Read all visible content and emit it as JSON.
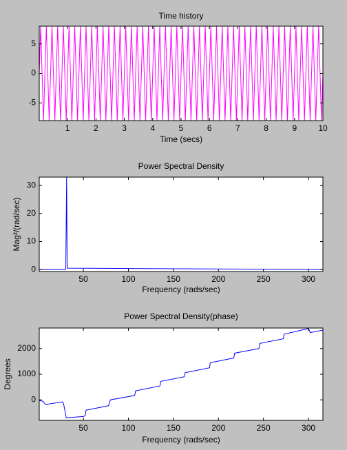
{
  "chart_data": [
    {
      "type": "line",
      "title": "Time history",
      "xlabel": "Time (secs)",
      "color": "#ff00ff",
      "xlim": [
        0,
        10
      ],
      "xticks": [
        1,
        2,
        3,
        4,
        5,
        6,
        7,
        8,
        9,
        10
      ],
      "ylim": [
        -8,
        8
      ],
      "yticks": [
        -5,
        0,
        5
      ],
      "x": [
        0,
        0.05,
        0.1,
        0.15,
        0.2,
        0.25,
        0.3,
        0.35,
        0.4,
        0.45,
        0.5,
        0.55,
        0.6,
        0.65,
        0.7,
        0.75,
        0.8,
        0.85,
        0.9,
        0.95,
        1,
        1.05,
        1.1,
        1.15,
        1.2,
        1.25,
        1.3,
        1.35,
        1.4,
        1.45,
        1.5,
        1.55,
        1.6,
        1.65,
        1.7,
        1.75,
        1.8,
        1.85,
        1.9,
        1.95,
        2,
        2.05,
        2.1,
        2.15,
        2.2,
        2.25,
        2.3,
        2.35,
        2.4,
        2.45,
        2.5,
        2.55,
        2.6,
        2.65,
        2.7,
        2.75,
        2.8,
        2.85,
        2.9,
        2.95,
        3,
        3.05,
        3.1,
        3.15,
        3.2,
        3.25,
        3.3,
        3.35,
        3.4,
        3.45,
        3.5,
        3.55,
        3.6,
        3.65,
        3.7,
        3.75,
        3.8,
        3.85,
        3.9,
        3.95,
        4,
        4.05,
        4.1,
        4.15,
        4.2,
        4.25,
        4.3,
        4.35,
        4.4,
        4.45,
        4.5,
        4.55,
        4.6,
        4.65,
        4.7,
        4.75,
        4.8,
        4.85,
        4.9,
        4.95,
        5,
        5.05,
        5.1,
        5.15,
        5.2,
        5.25,
        5.3,
        5.35,
        5.4,
        5.45,
        5.5,
        5.55,
        5.6,
        5.65,
        5.7,
        5.75,
        5.8,
        5.85,
        5.9,
        5.95,
        6,
        6.05,
        6.1,
        6.15,
        6.2,
        6.25,
        6.3,
        6.35,
        6.4,
        6.45,
        6.5,
        6.55,
        6.6,
        6.65,
        6.7,
        6.75,
        6.8,
        6.85,
        6.9,
        6.95,
        7,
        7.05,
        7.1,
        7.15,
        7.2,
        7.25,
        7.3,
        7.35,
        7.4,
        7.45,
        7.5,
        7.55,
        7.6,
        7.65,
        7.7,
        7.75,
        7.8,
        7.85,
        7.9,
        7.95,
        8,
        8.05,
        8.1,
        8.15,
        8.2,
        8.25,
        8.3,
        8.35,
        8.4,
        8.45,
        8.5,
        8.55,
        8.6,
        8.65,
        8.7,
        8.75,
        8.8,
        8.85,
        8.9,
        8.95,
        9,
        9.05,
        9.1,
        9.15,
        9.2,
        9.25,
        9.3,
        9.35,
        9.4,
        9.45,
        9.5,
        9.55,
        9.6,
        9.65,
        9.7,
        9.75,
        9.8,
        9.85,
        9.9,
        9.95,
        10
      ],
      "values": [
        0,
        8,
        0,
        -8,
        0,
        8,
        0,
        -8,
        0,
        8,
        0,
        -8,
        0,
        8,
        0,
        -8,
        0,
        8,
        0,
        -8,
        0,
        8,
        0,
        -8,
        0,
        8,
        0,
        -8,
        0,
        8,
        0,
        -8,
        0,
        8,
        0,
        -8,
        0,
        8,
        0,
        -8,
        0,
        8,
        0,
        -8,
        0,
        8,
        0,
        -8,
        0,
        8,
        0,
        -8,
        0,
        8,
        0,
        -8,
        0,
        8,
        0,
        -8,
        0,
        8,
        0,
        -8,
        0,
        8,
        0,
        -8,
        0,
        8,
        0,
        -8,
        0,
        8,
        0,
        -8,
        0,
        8,
        0,
        -8,
        0,
        8,
        0,
        -8,
        0,
        8,
        0,
        -8,
        0,
        8,
        0,
        -8,
        0,
        8,
        0,
        -8,
        0,
        8,
        0,
        -8,
        0,
        8,
        0,
        -8,
        0,
        8,
        0,
        -8,
        0,
        8,
        0,
        -8,
        0,
        8,
        0,
        -8,
        0,
        8,
        0,
        -8,
        0,
        8,
        0,
        -8,
        0,
        8,
        0,
        -8,
        0,
        8,
        0,
        -8,
        0,
        8,
        0,
        -8,
        0,
        8,
        0,
        -8,
        0,
        8,
        0,
        -8,
        0,
        8,
        0,
        -8,
        0,
        8,
        0,
        -8,
        0,
        8,
        0,
        -8,
        0,
        8,
        0,
        -8,
        0,
        8,
        0,
        -8,
        0,
        8,
        0,
        -8,
        0,
        8,
        0,
        -8,
        0,
        8,
        0,
        -8,
        0,
        8,
        0,
        -8,
        0,
        8,
        0,
        -8,
        0,
        8,
        0,
        -8,
        0,
        8,
        0,
        -8,
        0,
        8,
        0,
        -8,
        0,
        8,
        0,
        -8,
        0
      ]
    },
    {
      "type": "line",
      "title": "Power Spectral Density",
      "xlabel": "Frequency (rads/sec)",
      "ylabel": "Mag²/(rad/sec)",
      "color": "#0000ff",
      "xlim": [
        1,
        316
      ],
      "xticks": [
        50,
        100,
        150,
        200,
        250,
        300
      ],
      "ylim": [
        -0.7,
        33
      ],
      "yticks": [
        0,
        10,
        20,
        30
      ],
      "x": [
        1,
        30,
        30.5,
        31,
        31.4,
        32,
        316
      ],
      "values": [
        0,
        0,
        1,
        19,
        33,
        0.5,
        0
      ]
    },
    {
      "type": "line",
      "title": "Power Spectral Density(phase)",
      "xlabel": "Frequency (rads/sec)",
      "ylabel": "Degrees",
      "color": "#0000ff",
      "xlim": [
        1,
        316
      ],
      "xticks": [
        50,
        100,
        150,
        200,
        250,
        300
      ],
      "ylim": [
        -800,
        2800
      ],
      "yticks": [
        0,
        1000,
        2000
      ],
      "x": [
        1,
        5,
        8,
        14,
        27,
        28,
        31,
        50,
        52,
        53,
        78,
        80,
        107,
        108,
        135,
        136,
        162,
        163,
        190,
        191,
        217,
        218,
        245,
        246,
        272,
        273,
        300,
        302,
        316
      ],
      "values": [
        -30,
        -50,
        -180,
        -150,
        -80,
        -150,
        -700,
        -650,
        -620,
        -400,
        -230,
        0,
        170,
        350,
        540,
        720,
        900,
        1060,
        1250,
        1450,
        1630,
        1820,
        2000,
        2200,
        2380,
        2560,
        2780,
        2620,
        2720
      ]
    }
  ]
}
